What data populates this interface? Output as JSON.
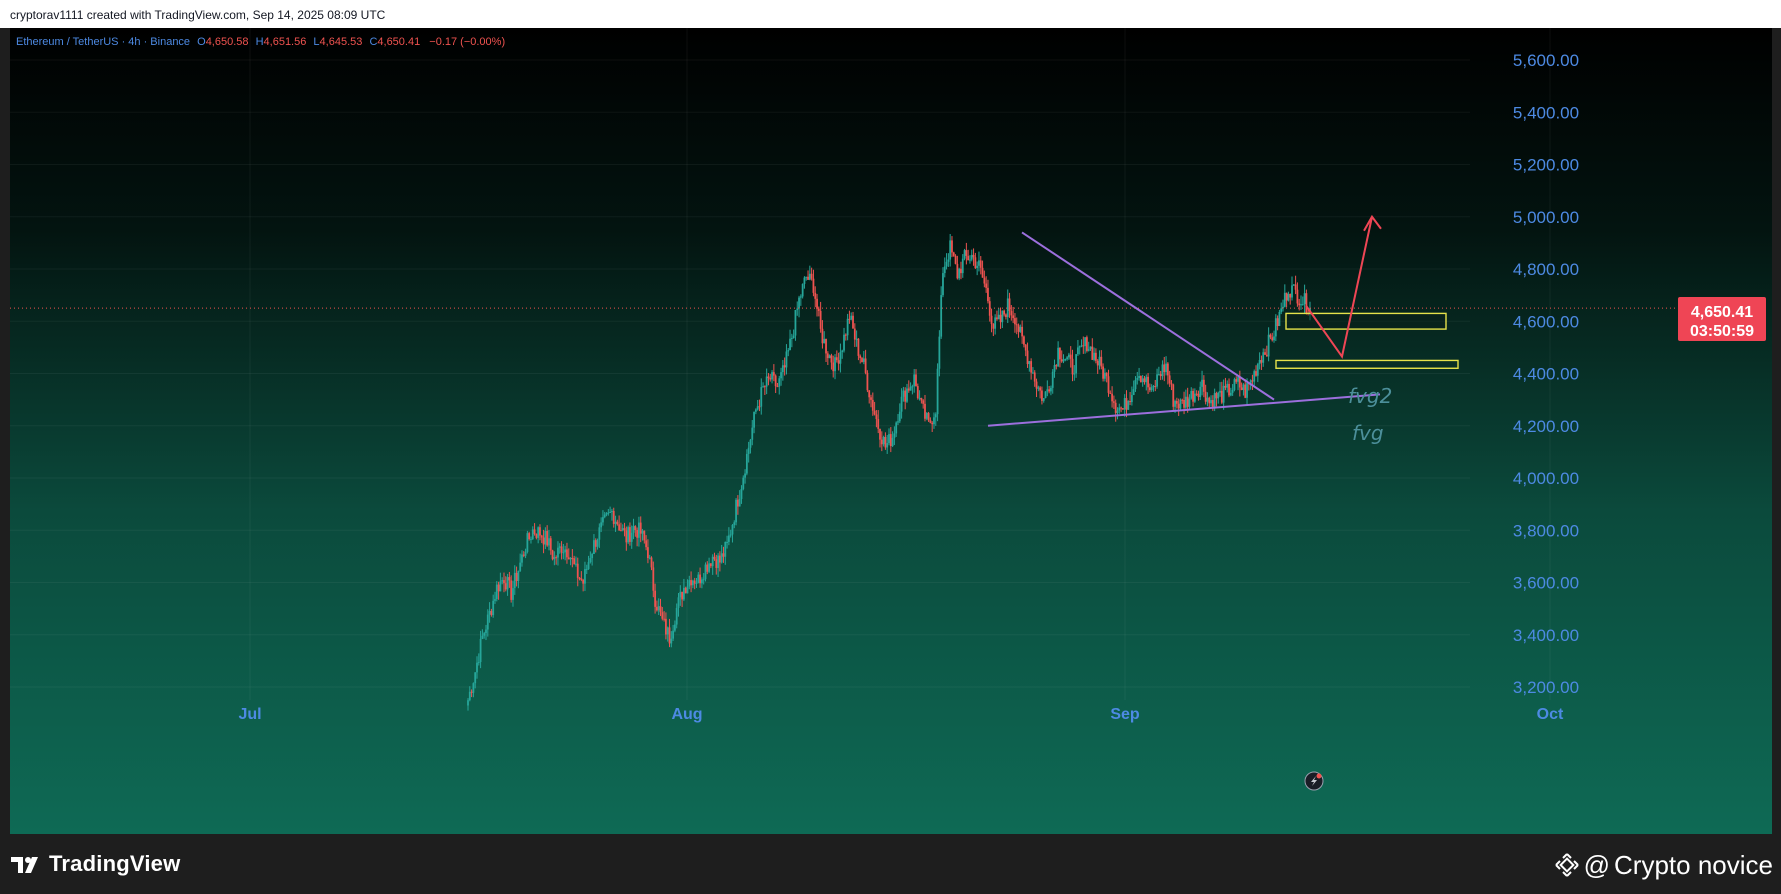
{
  "header": {
    "attribution": "cryptorav1111 created with TradingView.com, Sep 14, 2025 08:09 UTC"
  },
  "legend": {
    "symbol": "Ethereum / TetherUS · 4h · Binance",
    "open_label": "O",
    "open": "4,650.58",
    "high_label": "H",
    "high": "4,651.56",
    "low_label": "L",
    "low": "4,645.53",
    "close_label": "C",
    "close": "4,650.41",
    "change": "−0.17 (−0.00%)"
  },
  "price_badge": {
    "price": "4,650.41",
    "countdown": "03:50:59"
  },
  "annotations": {
    "fvg2": "fvg2",
    "fvg": "fvg"
  },
  "footer": {
    "brand": "TradingView",
    "watermark_at": "@",
    "watermark_name": "Crypto novice"
  },
  "colors": {
    "up": "#26a69a",
    "down": "#ef5350",
    "axis_text": "#4d8ae3",
    "trendline": "#9c6fdd",
    "zone": "#e6e24a",
    "arrow": "#ef4655",
    "fvg_text": "#4c8f9a",
    "badge": "#ef4555"
  },
  "icons": {
    "flash": "lightning-bolt-icon",
    "logo": "tradingview-logo-icon",
    "watermark": "binance-diamond-icon"
  },
  "chart_data": {
    "type": "candlestick",
    "x_axis": {
      "ticks": [
        "Jul",
        "Aug",
        "Sep",
        "Oct"
      ]
    },
    "y_axis": {
      "ticks": [
        "3,200.00",
        "3,400.00",
        "3,600.00",
        "3,800.00",
        "4,000.00",
        "4,200.00",
        "4,400.00",
        "4,600.00",
        "4,800.00",
        "5,000.00",
        "5,200.00",
        "5,400.00",
        "5,600.00"
      ],
      "ylim": [
        3120,
        5700
      ]
    },
    "grid": true,
    "current_price": 4650.41,
    "series_close": [
      3150,
      3260,
      3390,
      3480,
      3580,
      3620,
      3560,
      3650,
      3740,
      3800,
      3790,
      3760,
      3690,
      3740,
      3720,
      3640,
      3600,
      3710,
      3780,
      3830,
      3870,
      3820,
      3770,
      3810,
      3790,
      3720,
      3540,
      3450,
      3390,
      3500,
      3580,
      3620,
      3610,
      3660,
      3700,
      3680,
      3740,
      3860,
      3980,
      4120,
      4260,
      4340,
      4380,
      4350,
      4420,
      4540,
      4680,
      4770,
      4740,
      4560,
      4480,
      4430,
      4510,
      4620,
      4510,
      4430,
      4300,
      4200,
      4120,
      4160,
      4280,
      4340,
      4380,
      4270,
      4200,
      4270,
      4800,
      4880,
      4780,
      4840,
      4850,
      4810,
      4720,
      4580,
      4600,
      4660,
      4620,
      4520,
      4450,
      4360,
      4300,
      4380,
      4490,
      4460,
      4420,
      4480,
      4520,
      4470,
      4420,
      4360,
      4280,
      4260,
      4320,
      4410,
      4380,
      4320,
      4400,
      4430,
      4300,
      4280,
      4300,
      4330,
      4360,
      4290,
      4310,
      4320,
      4340,
      4360,
      4330,
      4380,
      4460,
      4500,
      4560,
      4640,
      4730,
      4710,
      4680,
      4650
    ],
    "drawings": {
      "triangle_upper": {
        "from": {
          "x": "Aug 22",
          "y": 4940
        },
        "to": {
          "x": "Sep 9",
          "y": 4300
        }
      },
      "triangle_lower": {
        "from": {
          "x": "Aug 21",
          "y": 4200
        },
        "to": {
          "x": "Sep 15",
          "y": 4320
        }
      },
      "fvg2_zone": {
        "y_range": [
          4570,
          4630
        ]
      },
      "fvg_zone": {
        "y_range": [
          4420,
          4450
        ]
      },
      "projected_path": [
        4650,
        4470,
        5000
      ]
    }
  }
}
